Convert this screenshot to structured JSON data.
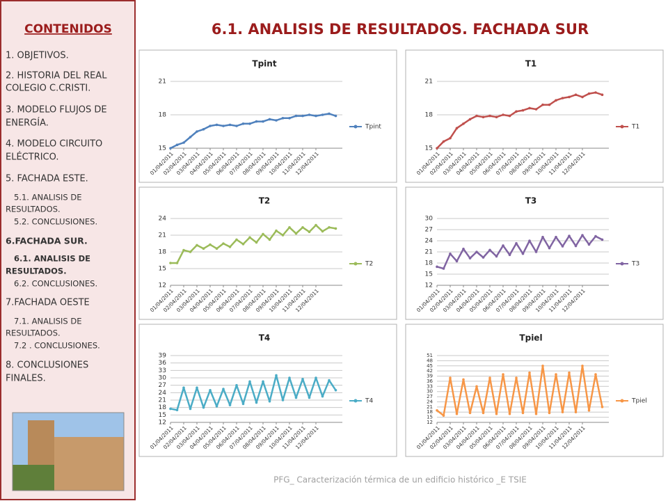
{
  "sidebar": {
    "title": "CONTENIDOS",
    "items": [
      "1. OBJETIVOS.",
      "2. HISTORIA DEL REAL",
      " COLEGIO C.CRISTI.",
      "3. MODELO FLUJOS DE",
      " ENERGÍA.",
      "4. MODELO CIRCUITO",
      " ELÉCTRICO.",
      "5. FACHADA ESTE.",
      "5.1. ANALISIS DE",
      "RESULTADOS.",
      "5.2. CONCLUSIONES.",
      "6.FACHADA SUR.",
      "6.1. ANALISIS DE",
      "RESULTADOS.",
      "6.2. CONCLUSIONES.",
      "7.FACHADA OESTE",
      "7.1. ANALISIS DE",
      "RESULTADOS.",
      "7.2 . CONCLUSIONES.",
      "8. CONCLUSIONES",
      " FINALES."
    ]
  },
  "header": {
    "title": "6.1. ANALISIS DE RESULTADOS. FACHADA SUR"
  },
  "footer": {
    "text": "PFG_ Caracterización térmica de un edificio histórico _E TSIE"
  },
  "chart_data": [
    {
      "type": "line",
      "title": "Tpint",
      "x": [
        0,
        0.5,
        1,
        1.5,
        2,
        2.5,
        3,
        3.5,
        4,
        4.5,
        5,
        5.5,
        6,
        6.5,
        7,
        7.5,
        8,
        8.5,
        9,
        9.5,
        10,
        10.5,
        11,
        11.5,
        12,
        12.5
      ],
      "xlim": [
        0,
        13
      ],
      "xticks": [
        {
          "value": 0,
          "label": "01/04/2011"
        },
        {
          "value": 1,
          "label": "02/04/2011"
        },
        {
          "value": 2,
          "label": "03/04/2011"
        },
        {
          "value": 3,
          "label": "04/04/2011"
        },
        {
          "value": 4,
          "label": "05/04/2011"
        },
        {
          "value": 5,
          "label": "06/04/2011"
        },
        {
          "value": 6,
          "label": "07/04/2011"
        },
        {
          "value": 7,
          "label": "08/04/2011"
        },
        {
          "value": 8,
          "label": "09/04/2011"
        },
        {
          "value": 9,
          "label": "10/04/2011"
        },
        {
          "value": 10,
          "label": "11/04/2011"
        },
        {
          "value": 11,
          "label": "12/04/2011"
        }
      ],
      "ylim": [
        15,
        21
      ],
      "yticks": [
        15,
        18,
        21
      ],
      "grid": true,
      "legend": "right",
      "series": [
        {
          "name": "Tpint",
          "color": "#4f81bd",
          "values": [
            15.0,
            15.3,
            15.5,
            16.0,
            16.5,
            16.7,
            17.0,
            17.1,
            17.0,
            17.1,
            17.0,
            17.2,
            17.2,
            17.4,
            17.4,
            17.6,
            17.5,
            17.7,
            17.7,
            17.9,
            17.9,
            18.0,
            17.9,
            18.0,
            18.1,
            17.9
          ]
        }
      ]
    },
    {
      "type": "line",
      "title": "T1",
      "x": [
        0,
        0.5,
        1,
        1.5,
        2,
        2.5,
        3,
        3.5,
        4,
        4.5,
        5,
        5.5,
        6,
        6.5,
        7,
        7.5,
        8,
        8.5,
        9,
        9.5,
        10,
        10.5,
        11,
        11.5,
        12,
        12.5
      ],
      "xlim": [
        0,
        13
      ],
      "xticks": [
        {
          "value": 0,
          "label": "01/04/2011"
        },
        {
          "value": 1,
          "label": "02/04/2011"
        },
        {
          "value": 2,
          "label": "03/04/2011"
        },
        {
          "value": 3,
          "label": "04/04/2011"
        },
        {
          "value": 4,
          "label": "05/04/2011"
        },
        {
          "value": 5,
          "label": "06/04/2011"
        },
        {
          "value": 6,
          "label": "07/04/2011"
        },
        {
          "value": 7,
          "label": "08/04/2011"
        },
        {
          "value": 8,
          "label": "09/04/2011"
        },
        {
          "value": 9,
          "label": "10/04/2011"
        },
        {
          "value": 10,
          "label": "11/04/2011"
        },
        {
          "value": 11,
          "label": "12/04/2011"
        }
      ],
      "ylim": [
        15,
        21
      ],
      "yticks": [
        15,
        18,
        21
      ],
      "grid": true,
      "legend": "right",
      "series": [
        {
          "name": "T1",
          "color": "#c0504d",
          "values": [
            15.0,
            15.6,
            15.9,
            16.8,
            17.2,
            17.6,
            17.9,
            17.8,
            17.9,
            17.8,
            18.0,
            17.9,
            18.3,
            18.4,
            18.6,
            18.5,
            18.9,
            18.9,
            19.3,
            19.5,
            19.6,
            19.8,
            19.6,
            19.9,
            20.0,
            19.8
          ]
        }
      ]
    },
    {
      "type": "line",
      "title": "T2",
      "x": [
        0,
        0.5,
        1,
        1.5,
        2,
        2.5,
        3,
        3.5,
        4,
        4.5,
        5,
        5.5,
        6,
        6.5,
        7,
        7.5,
        8,
        8.5,
        9,
        9.5,
        10,
        10.5,
        11,
        11.5,
        12,
        12.5
      ],
      "xlim": [
        0,
        13
      ],
      "xticks": [
        {
          "value": 0,
          "label": "01/04/2011"
        },
        {
          "value": 1,
          "label": "02/04/2011"
        },
        {
          "value": 2,
          "label": "03/04/2011"
        },
        {
          "value": 3,
          "label": "04/04/2011"
        },
        {
          "value": 4,
          "label": "05/04/2011"
        },
        {
          "value": 5,
          "label": "06/04/2011"
        },
        {
          "value": 6,
          "label": "07/04/2011"
        },
        {
          "value": 7,
          "label": "08/04/2011"
        },
        {
          "value": 8,
          "label": "09/04/2011"
        },
        {
          "value": 9,
          "label": "10/04/2011"
        },
        {
          "value": 10,
          "label": "11/04/2011"
        },
        {
          "value": 11,
          "label": "12/04/2011"
        }
      ],
      "ylim": [
        12,
        24
      ],
      "yticks": [
        12,
        15,
        18,
        21,
        24
      ],
      "grid": true,
      "legend": "right",
      "series": [
        {
          "name": "T2",
          "color": "#9bbb59",
          "values": [
            16,
            16,
            18.3,
            18.0,
            19.2,
            18.6,
            19.3,
            18.6,
            19.5,
            18.9,
            20.2,
            19.4,
            20.6,
            19.7,
            21.2,
            20.2,
            21.8,
            21.0,
            22.4,
            21.3,
            22.4,
            21.6,
            22.8,
            21.7,
            22.4,
            22.2
          ]
        }
      ]
    },
    {
      "type": "line",
      "title": "T3",
      "x": [
        0,
        0.5,
        1,
        1.5,
        2,
        2.5,
        3,
        3.5,
        4,
        4.5,
        5,
        5.5,
        6,
        6.5,
        7,
        7.5,
        8,
        8.5,
        9,
        9.5,
        10,
        10.5,
        11,
        11.5,
        12,
        12.5
      ],
      "xlim": [
        0,
        13
      ],
      "xticks": [
        {
          "value": 0,
          "label": "01/04/2011"
        },
        {
          "value": 1,
          "label": "02/04/2011"
        },
        {
          "value": 2,
          "label": "03/04/2011"
        },
        {
          "value": 3,
          "label": "04/04/2011"
        },
        {
          "value": 4,
          "label": "05/04/2011"
        },
        {
          "value": 5,
          "label": "06/04/2011"
        },
        {
          "value": 6,
          "label": "07/04/2011"
        },
        {
          "value": 7,
          "label": "08/04/2011"
        },
        {
          "value": 8,
          "label": "09/04/2011"
        },
        {
          "value": 9,
          "label": "10/04/2011"
        },
        {
          "value": 10,
          "label": "11/04/2011"
        },
        {
          "value": 11,
          "label": "12/04/2011"
        }
      ],
      "ylim": [
        12,
        30
      ],
      "yticks": [
        12,
        15,
        18,
        21,
        24,
        27,
        30
      ],
      "grid": true,
      "legend": "right",
      "series": [
        {
          "name": "T3",
          "color": "#8064a2",
          "values": [
            17,
            16.5,
            20.5,
            18.5,
            21.8,
            19.3,
            21.0,
            19.5,
            21.5,
            19.8,
            22.7,
            20.2,
            23.3,
            20.5,
            24.0,
            21.0,
            25.0,
            22.0,
            25.0,
            22.5,
            25.3,
            22.6,
            25.5,
            23.0,
            25.2,
            24.3
          ]
        }
      ]
    },
    {
      "type": "line",
      "title": "T4",
      "x": [
        0,
        0.5,
        1,
        1.5,
        2,
        2.5,
        3,
        3.5,
        4,
        4.5,
        5,
        5.5,
        6,
        6.5,
        7,
        7.5,
        8,
        8.5,
        9,
        9.5,
        10,
        10.5,
        11,
        11.5,
        12,
        12.5
      ],
      "xlim": [
        0,
        13
      ],
      "xticks": [
        {
          "value": 0,
          "label": "01/04/2011"
        },
        {
          "value": 1,
          "label": "02/04/2011"
        },
        {
          "value": 2,
          "label": "03/04/2011"
        },
        {
          "value": 3,
          "label": "04/04/2011"
        },
        {
          "value": 4,
          "label": "05/04/2011"
        },
        {
          "value": 5,
          "label": "06/04/2011"
        },
        {
          "value": 6,
          "label": "07/04/2011"
        },
        {
          "value": 7,
          "label": "08/04/2011"
        },
        {
          "value": 8,
          "label": "09/04/2011"
        },
        {
          "value": 9,
          "label": "10/04/2011"
        },
        {
          "value": 10,
          "label": "11/04/2011"
        },
        {
          "value": 11,
          "label": "12/04/2011"
        }
      ],
      "ylim": [
        12,
        39
      ],
      "yticks": [
        12,
        15,
        18,
        21,
        24,
        27,
        30,
        33,
        36,
        39
      ],
      "grid": true,
      "legend": "right",
      "series": [
        {
          "name": "T4",
          "color": "#4bacc6",
          "values": [
            17.5,
            17,
            26,
            17.5,
            26,
            18,
            25,
            18.5,
            25.5,
            19,
            27,
            19.5,
            28.5,
            20,
            28.5,
            20.5,
            31,
            21,
            30,
            22,
            29.5,
            22,
            30,
            22.5,
            29,
            25
          ]
        }
      ]
    },
    {
      "type": "line",
      "title": "Tpiel",
      "x": [
        0,
        0.5,
        1,
        1.5,
        2,
        2.5,
        3,
        3.5,
        4,
        4.5,
        5,
        5.5,
        6,
        6.5,
        7,
        7.5,
        8,
        8.5,
        9,
        9.5,
        10,
        10.5,
        11,
        11.5,
        12,
        12.5
      ],
      "xlim": [
        0,
        13
      ],
      "xticks": [
        {
          "value": 0,
          "label": "01/04/2011"
        },
        {
          "value": 1,
          "label": "02/04/2011"
        },
        {
          "value": 2,
          "label": "03/04/2011"
        },
        {
          "value": 3,
          "label": "04/04/2011"
        },
        {
          "value": 4,
          "label": "05/04/2011"
        },
        {
          "value": 5,
          "label": "06/04/2011"
        },
        {
          "value": 6,
          "label": "07/04/2011"
        },
        {
          "value": 7,
          "label": "08/04/2011"
        },
        {
          "value": 8,
          "label": "09/04/2011"
        },
        {
          "value": 9,
          "label": "10/04/2011"
        },
        {
          "value": 10,
          "label": "11/04/2011"
        },
        {
          "value": 11,
          "label": "12/04/2011"
        }
      ],
      "ylim": [
        12,
        51
      ],
      "yticks": [
        12,
        15,
        18,
        21,
        24,
        27,
        30,
        33,
        36,
        39,
        42,
        45,
        48,
        51
      ],
      "grid": true,
      "legend": "right",
      "series": [
        {
          "name": "Tpiel",
          "color": "#f79646",
          "values": [
            19,
            16,
            38,
            17,
            37,
            17.5,
            33,
            17.5,
            38,
            17,
            40,
            17,
            38,
            17.5,
            41,
            17,
            45,
            17.5,
            40,
            18,
            41,
            18,
            45,
            19,
            40,
            21
          ]
        }
      ]
    }
  ]
}
